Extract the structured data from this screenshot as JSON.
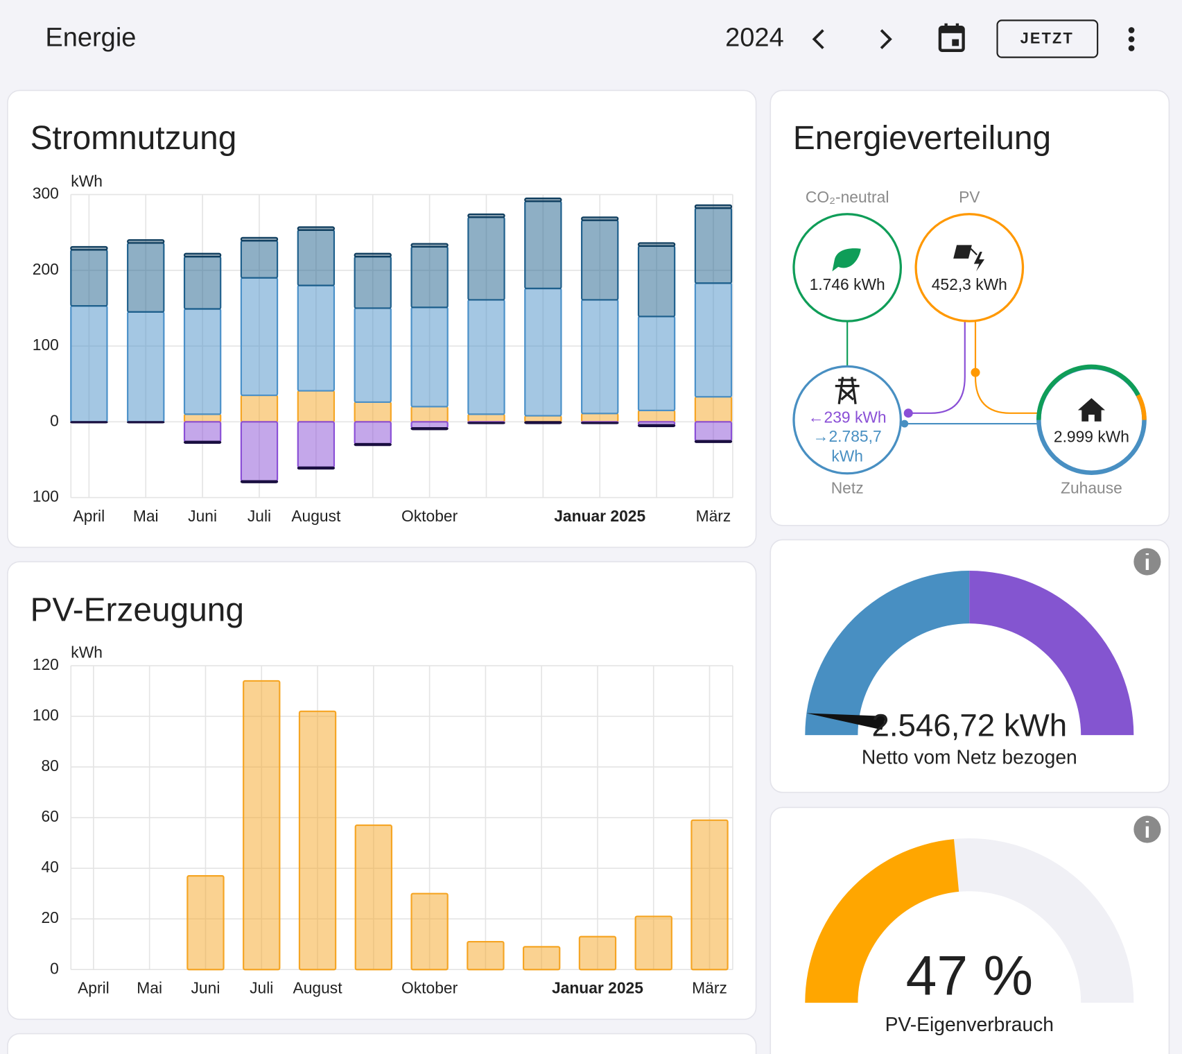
{
  "header": {
    "title": "Energie",
    "period": "2024",
    "now_button": "JETZT"
  },
  "chart_data": [
    {
      "type": "bar",
      "stacked": true,
      "title": "Stromnutzung",
      "y_unit": "kWh",
      "categories": [
        "April",
        "Mai",
        "Juni",
        "Juli",
        "August",
        null,
        "Oktober",
        null,
        null,
        "Januar 2025",
        null,
        "März"
      ],
      "series": [
        {
          "color": "#f5a524",
          "values": [
            0,
            0,
            10,
            35,
            41,
            26,
            20,
            10,
            8,
            11,
            15,
            33
          ]
        },
        {
          "color": "#4a90c8",
          "values": [
            153,
            145,
            139,
            155,
            139,
            124,
            131,
            151,
            168,
            150,
            124,
            150
          ]
        },
        {
          "color": "#1e5f8c",
          "values": [
            74,
            91,
            69,
            49,
            73,
            68,
            80,
            109,
            115,
            105,
            93,
            99
          ]
        },
        {
          "color": "#0e3d5e",
          "values": [
            4,
            4,
            4,
            4,
            4,
            4,
            4,
            4,
            4,
            4,
            4,
            4
          ]
        },
        {
          "color": "#8a4fd6",
          "values": [
            0,
            0,
            -26,
            -78,
            -60,
            -29,
            -8,
            -1,
            0,
            -1,
            -4,
            -25
          ]
        },
        {
          "color": "#1a0f40",
          "values": [
            -1,
            -1,
            -2,
            -2,
            -2,
            -2,
            -2,
            -1,
            -2,
            -1,
            -2,
            -2
          ]
        }
      ],
      "ylim": [
        -100,
        300
      ],
      "yticks": [
        {
          "value": -100,
          "label": "100"
        },
        0,
        100,
        200,
        300
      ],
      "grid": true
    },
    {
      "type": "bar",
      "title": "PV-Erzeugung",
      "y_unit": "kWh",
      "categories": [
        "April",
        "Mai",
        "Juni",
        "Juli",
        "August",
        null,
        "Oktober",
        null,
        null,
        "Januar 2025",
        null,
        "März"
      ],
      "values": [
        0,
        0,
        37,
        114,
        102,
        57,
        30,
        11,
        9,
        13,
        21,
        59
      ],
      "color": "#f5a524",
      "ylim": [
        0,
        120
      ],
      "yticks": [
        0,
        20,
        40,
        60,
        80,
        100,
        120
      ],
      "grid": true
    }
  ],
  "energy_distribution": {
    "title": "Energieverteilung",
    "co2": {
      "label": "CO₂-neutral",
      "value": "1.746 kWh"
    },
    "pv": {
      "label": "PV",
      "value": "452,3 kWh"
    },
    "grid": {
      "label": "Netz",
      "from": "←239 kWh",
      "to": "→2.785,7 kWh"
    },
    "home": {
      "label": "Zuhause",
      "value": "2.999 kWh"
    }
  },
  "gauges": [
    {
      "value_label": "2.546,72 kWh",
      "label": "Netto vom Netz bezogen"
    },
    {
      "value": 47,
      "range": [
        0,
        100
      ],
      "value_label": "47 %",
      "label": "PV-Eigenverbrauch"
    }
  ]
}
